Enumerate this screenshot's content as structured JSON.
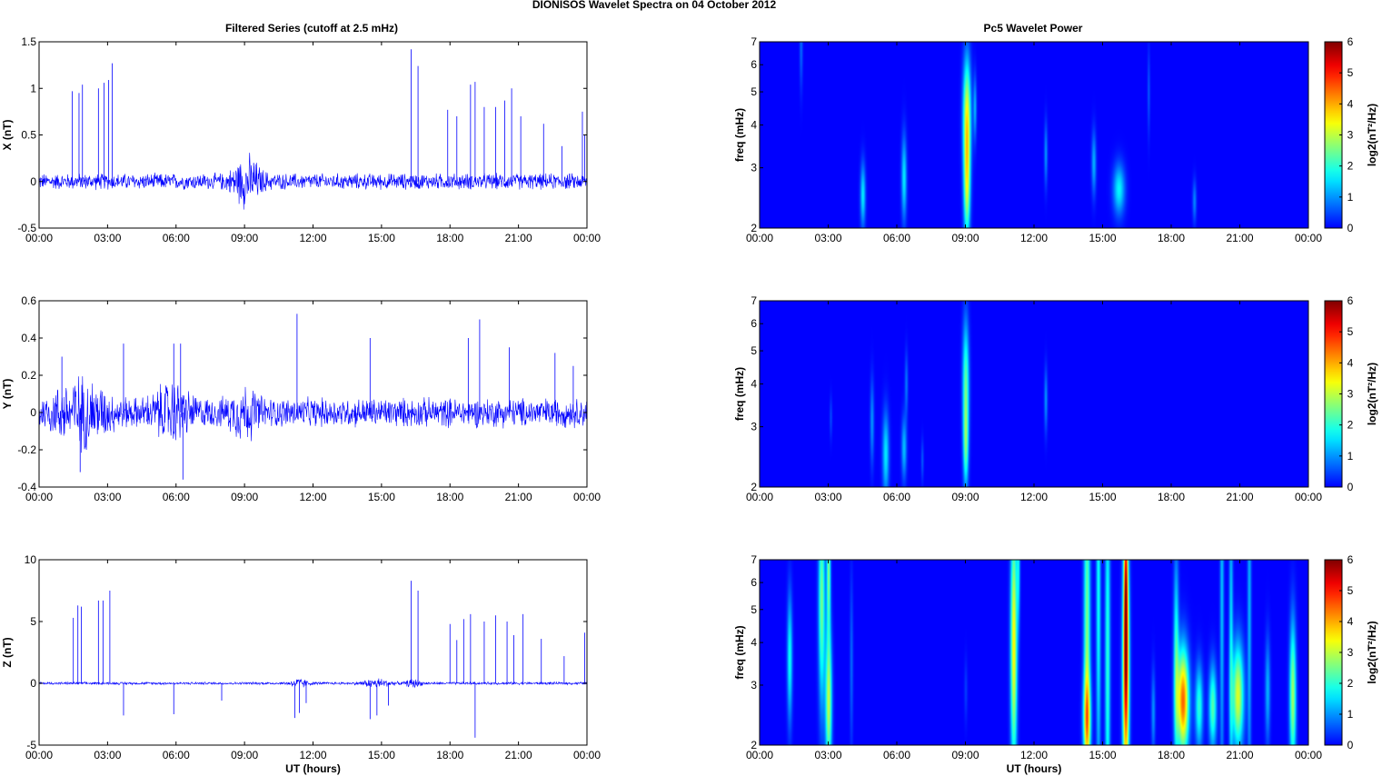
{
  "figure": {
    "title": "DIONISOS Wavelet Spectra on 04 October   2012",
    "left_title": "Filtered Series (cutoff at 2.5 mHz)",
    "right_title": "Pc5 Wavelet Power"
  },
  "chart_data": [
    {
      "type": "line",
      "id": "x",
      "ylabel": "X (nT)",
      "xlabel": "",
      "ylim": [
        -0.5,
        1.5
      ],
      "yticks": [
        "-0.5",
        "0",
        "0.5",
        "1",
        "1.5"
      ],
      "xticks": [
        "00:00",
        "03:00",
        "06:00",
        "09:00",
        "12:00",
        "15:00",
        "18:00",
        "21:00",
        "00:00"
      ],
      "color": "#0000ff",
      "noise_amp": 0.1,
      "bursts": [
        [
          9.1,
          0.6,
          0.25
        ]
      ],
      "spikes": [
        [
          1.45,
          0.97
        ],
        [
          1.75,
          0.95
        ],
        [
          1.9,
          1.04
        ],
        [
          2.6,
          1.0
        ],
        [
          2.85,
          1.06
        ],
        [
          3.05,
          1.09
        ],
        [
          3.2,
          1.27
        ],
        [
          9.4,
          0.2
        ],
        [
          16.3,
          1.42
        ],
        [
          16.6,
          1.24
        ],
        [
          17.9,
          0.77
        ],
        [
          18.3,
          0.7
        ],
        [
          18.9,
          1.04
        ],
        [
          19.1,
          1.07
        ],
        [
          19.5,
          0.8
        ],
        [
          20.0,
          0.8
        ],
        [
          20.4,
          0.87
        ],
        [
          20.7,
          1.0
        ],
        [
          21.1,
          0.7
        ],
        [
          22.1,
          0.62
        ],
        [
          22.9,
          0.38
        ],
        [
          23.8,
          0.75
        ],
        [
          23.9,
          0.5
        ]
      ]
    },
    {
      "type": "line",
      "id": "y",
      "ylabel": "Y (nT)",
      "xlabel": "",
      "ylim": [
        -0.4,
        0.6
      ],
      "yticks": [
        "-0.4",
        "-0.2",
        "0",
        "0.2",
        "0.4",
        "0.6"
      ],
      "xticks": [
        "00:00",
        "03:00",
        "06:00",
        "09:00",
        "12:00",
        "15:00",
        "18:00",
        "21:00",
        "00:00"
      ],
      "color": "#0000ff",
      "noise_amp": 0.09,
      "bursts": [
        [
          1.8,
          1.2,
          0.15
        ],
        [
          5.8,
          0.8,
          0.12
        ],
        [
          9.0,
          0.6,
          0.1
        ]
      ],
      "spikes": [
        [
          1.0,
          0.3
        ],
        [
          1.8,
          -0.32
        ],
        [
          3.7,
          0.37
        ],
        [
          5.9,
          0.37
        ],
        [
          6.2,
          0.37
        ],
        [
          6.3,
          -0.36
        ],
        [
          11.3,
          0.53
        ],
        [
          14.5,
          0.4
        ],
        [
          18.8,
          0.4
        ],
        [
          19.3,
          0.5
        ],
        [
          20.6,
          0.35
        ],
        [
          22.6,
          0.32
        ],
        [
          23.4,
          0.25
        ]
      ]
    },
    {
      "type": "line",
      "id": "z",
      "ylabel": "Z (nT)",
      "xlabel": "UT (hours)",
      "ylim": [
        -5,
        10
      ],
      "yticks": [
        "-5",
        "0",
        "5",
        "10"
      ],
      "xticks": [
        "00:00",
        "03:00",
        "06:00",
        "09:00",
        "12:00",
        "15:00",
        "18:00",
        "21:00",
        "00:00"
      ],
      "color": "#0000ff",
      "noise_amp": 0.12,
      "bursts": [
        [
          11.4,
          0.4,
          0.4
        ],
        [
          14.8,
          0.6,
          0.4
        ],
        [
          16.4,
          0.3,
          0.4
        ]
      ],
      "spikes": [
        [
          1.5,
          5.3
        ],
        [
          1.7,
          6.3
        ],
        [
          1.85,
          6.2
        ],
        [
          2.6,
          6.7
        ],
        [
          2.8,
          6.7
        ],
        [
          3.1,
          7.5
        ],
        [
          3.7,
          -2.6
        ],
        [
          5.9,
          -2.5
        ],
        [
          8.0,
          -1.4
        ],
        [
          11.2,
          -2.8
        ],
        [
          11.4,
          -2.4
        ],
        [
          11.7,
          -1.6
        ],
        [
          14.5,
          -2.9
        ],
        [
          14.8,
          -2.6
        ],
        [
          15.3,
          -1.8
        ],
        [
          16.3,
          8.3
        ],
        [
          16.6,
          7.5
        ],
        [
          18.0,
          4.8
        ],
        [
          18.3,
          3.5
        ],
        [
          18.6,
          5.2
        ],
        [
          18.9,
          5.6
        ],
        [
          19.1,
          -4.4
        ],
        [
          19.5,
          5.0
        ],
        [
          20.0,
          5.5
        ],
        [
          20.5,
          5.0
        ],
        [
          20.8,
          3.9
        ],
        [
          21.2,
          5.6
        ],
        [
          22.0,
          3.6
        ],
        [
          23.0,
          2.2
        ],
        [
          23.9,
          4.1
        ]
      ]
    },
    {
      "type": "heatmap",
      "id": "px",
      "ylabel": "freq (mHz)",
      "xlabel": "",
      "colorbar_label": "log2(nT²/Hz)",
      "ylim": [
        2,
        7
      ],
      "yscale": "log",
      "yticks": [
        "2",
        "3",
        "4",
        "5",
        "6",
        "7"
      ],
      "xticks": [
        "00:00",
        "03:00",
        "06:00",
        "09:00",
        "12:00",
        "15:00",
        "18:00",
        "21:00",
        "00:00"
      ],
      "clim": [
        0,
        6
      ],
      "cticks": [
        "0",
        "1",
        "2",
        "3",
        "4",
        "5",
        "6"
      ],
      "blobs": [
        [
          9.05,
          4.2,
          0.12,
          0.28,
          3.3
        ],
        [
          9.05,
          2.6,
          0.1,
          0.25,
          2.6
        ],
        [
          4.5,
          2.5,
          0.08,
          0.15,
          1.6
        ],
        [
          6.3,
          2.8,
          0.08,
          0.2,
          1.6
        ],
        [
          15.7,
          2.6,
          0.18,
          0.12,
          1.7
        ],
        [
          14.6,
          3.1,
          0.07,
          0.15,
          1.2
        ],
        [
          12.5,
          3.3,
          0.05,
          0.15,
          1.0
        ],
        [
          19.0,
          2.4,
          0.06,
          0.1,
          0.9
        ],
        [
          17.0,
          5.0,
          0.04,
          0.2,
          0.6
        ],
        [
          1.8,
          6.8,
          0.05,
          0.2,
          0.7
        ],
        [
          9.4,
          4.5,
          0.05,
          0.15,
          1.2
        ]
      ]
    },
    {
      "type": "heatmap",
      "id": "py",
      "ylabel": "freq (mHz)",
      "xlabel": "",
      "colorbar_label": "log2(nT²/Hz)",
      "ylim": [
        2,
        7
      ],
      "yscale": "log",
      "yticks": [
        "2",
        "3",
        "4",
        "5",
        "6",
        "7"
      ],
      "xticks": [
        "00:00",
        "03:00",
        "06:00",
        "09:00",
        "12:00",
        "15:00",
        "18:00",
        "21:00",
        "00:00"
      ],
      "clim": [
        0,
        6
      ],
      "cticks": [
        "0",
        "1",
        "2",
        "3",
        "4",
        "5",
        "6"
      ],
      "blobs": [
        [
          9.0,
          4.0,
          0.1,
          0.3,
          2.3
        ],
        [
          9.0,
          2.6,
          0.08,
          0.2,
          1.8
        ],
        [
          5.5,
          2.5,
          0.1,
          0.2,
          1.6
        ],
        [
          6.3,
          2.6,
          0.08,
          0.15,
          1.3
        ],
        [
          4.9,
          3.1,
          0.06,
          0.2,
          1.0
        ],
        [
          6.4,
          4.0,
          0.05,
          0.15,
          0.8
        ],
        [
          12.5,
          3.6,
          0.05,
          0.15,
          1.0
        ],
        [
          7.1,
          2.4,
          0.04,
          0.1,
          0.6
        ],
        [
          3.1,
          3.2,
          0.04,
          0.1,
          0.5
        ]
      ]
    },
    {
      "type": "heatmap",
      "id": "pz",
      "ylabel": "freq (mHz)",
      "xlabel": "UT (hours)",
      "colorbar_label": "log2(nT²/Hz)",
      "ylim": [
        2,
        7
      ],
      "yscale": "log",
      "yticks": [
        "2",
        "3",
        "4",
        "5",
        "6",
        "7"
      ],
      "xticks": [
        "00:00",
        "03:00",
        "06:00",
        "09:00",
        "12:00",
        "15:00",
        "18:00",
        "21:00",
        "00:00"
      ],
      "clim": [
        0,
        6
      ],
      "cticks": [
        "0",
        "1",
        "2",
        "3",
        "4",
        "5",
        "6"
      ],
      "blobs": [
        [
          1.3,
          3.6,
          0.08,
          0.3,
          1.8
        ],
        [
          2.7,
          5.3,
          0.1,
          0.5,
          2.5
        ],
        [
          3.0,
          2.7,
          0.1,
          0.35,
          3.0
        ],
        [
          3.0,
          6.6,
          0.06,
          0.3,
          2.5
        ],
        [
          4.0,
          3.5,
          0.05,
          0.4,
          0.7
        ],
        [
          11.1,
          4.0,
          0.1,
          0.6,
          3.5
        ],
        [
          11.3,
          6.8,
          0.05,
          0.3,
          1.5
        ],
        [
          14.3,
          3.8,
          0.1,
          1.0,
          2.6
        ],
        [
          14.3,
          2.4,
          0.12,
          0.2,
          2.4
        ],
        [
          14.8,
          5.5,
          0.07,
          1.0,
          1.8
        ],
        [
          15.2,
          3.5,
          0.08,
          1.0,
          2.0
        ],
        [
          16.0,
          3.3,
          0.1,
          0.6,
          5.0
        ],
        [
          16.0,
          6.5,
          0.06,
          0.5,
          3.0
        ],
        [
          18.5,
          2.7,
          0.18,
          0.25,
          4.5
        ],
        [
          18.2,
          3.5,
          0.08,
          0.5,
          2.0
        ],
        [
          19.2,
          2.6,
          0.12,
          0.2,
          2.0
        ],
        [
          19.8,
          2.6,
          0.12,
          0.2,
          2.3
        ],
        [
          20.2,
          5.5,
          0.06,
          1.0,
          1.3
        ],
        [
          20.9,
          2.8,
          0.18,
          0.25,
          3.2
        ],
        [
          20.6,
          4.0,
          0.06,
          0.8,
          1.5
        ],
        [
          21.4,
          5.0,
          0.06,
          1.0,
          1.2
        ],
        [
          22.2,
          2.9,
          0.08,
          0.25,
          1.2
        ],
        [
          23.3,
          2.8,
          0.1,
          0.35,
          2.8
        ],
        [
          17.2,
          2.5,
          0.06,
          0.2,
          1.0
        ],
        [
          9.0,
          2.9,
          0.05,
          0.15,
          0.4
        ]
      ]
    }
  ]
}
